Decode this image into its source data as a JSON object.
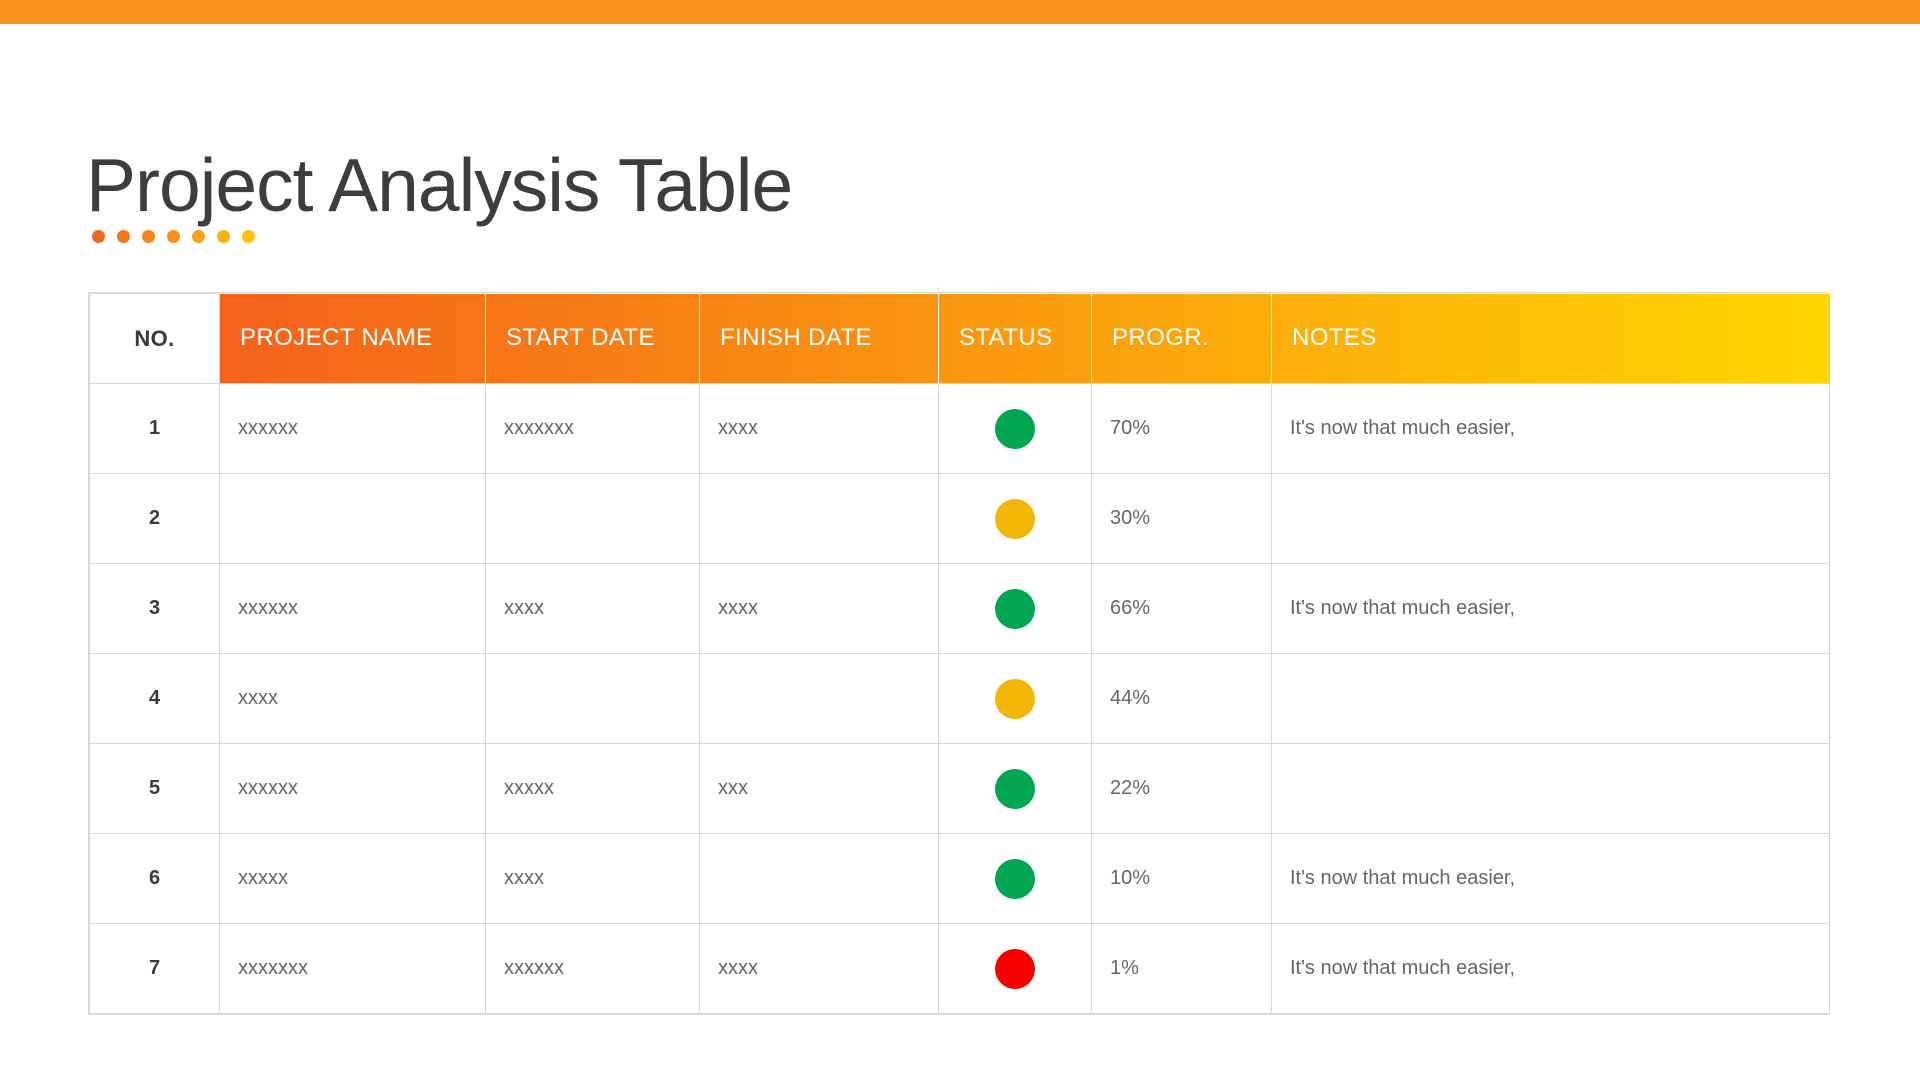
{
  "page": {
    "title": "Project Analysis Table",
    "accent_bar_color": "#F7941E",
    "dot_colors": [
      "#F3681F",
      "#F4761D",
      "#F6851B",
      "#F79318",
      "#F9A215",
      "#FBB111",
      "#FDC00C"
    ]
  },
  "table": {
    "header_gradient": [
      "#F4581E",
      "#FFD600"
    ],
    "columns": [
      {
        "key": "no",
        "label": "NO."
      },
      {
        "key": "project_name",
        "label": "PROJECT NAME"
      },
      {
        "key": "start_date",
        "label": "START DATE"
      },
      {
        "key": "finish_date",
        "label": "FINISH DATE"
      },
      {
        "key": "status",
        "label": "STATUS"
      },
      {
        "key": "progress",
        "label": "PROGR."
      },
      {
        "key": "notes",
        "label": "NOTES"
      }
    ],
    "status_colors": {
      "green": "#00A651",
      "yellow": "#F2B705",
      "red": "#F80000"
    },
    "rows": [
      {
        "no": "1",
        "project_name": "xxxxxx",
        "start_date": "xxxxxxx",
        "finish_date": "xxxx",
        "status": "green",
        "progress": "70%",
        "notes": "It's now that much easier,"
      },
      {
        "no": "2",
        "project_name": "",
        "start_date": "",
        "finish_date": "",
        "status": "yellow",
        "progress": "30%",
        "notes": ""
      },
      {
        "no": "3",
        "project_name": "xxxxxx",
        "start_date": "xxxx",
        "finish_date": "xxxx",
        "status": "green",
        "progress": "66%",
        "notes": "It's now that much easier,"
      },
      {
        "no": "4",
        "project_name": "xxxx",
        "start_date": "",
        "finish_date": "",
        "status": "yellow",
        "progress": "44%",
        "notes": ""
      },
      {
        "no": "5",
        "project_name": "xxxxxx",
        "start_date": "xxxxx",
        "finish_date": "xxx",
        "status": "green",
        "progress": "22%",
        "notes": ""
      },
      {
        "no": "6",
        "project_name": "xxxxx",
        "start_date": "xxxx",
        "finish_date": "",
        "status": "green",
        "progress": "10%",
        "notes": "It's now that much easier,"
      },
      {
        "no": "7",
        "project_name": "xxxxxxx",
        "start_date": "xxxxxx",
        "finish_date": "xxxx",
        "status": "red",
        "progress": "1%",
        "notes": "It's now that much easier,"
      }
    ]
  }
}
